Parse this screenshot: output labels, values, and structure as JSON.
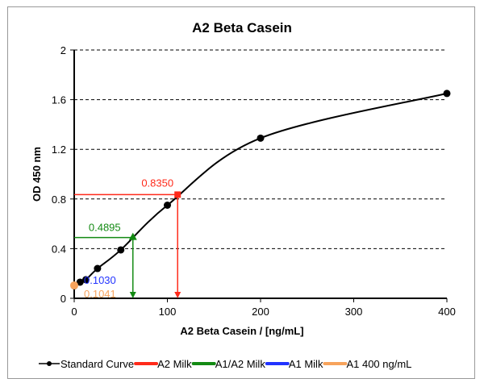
{
  "chart_data": {
    "type": "line",
    "title": "A2 Beta Casein",
    "xlabel": "A2 Beta Casein / [ng/mL]",
    "ylabel": "OD 450 nm",
    "xlim": [
      0,
      400
    ],
    "ylim": [
      0,
      2
    ],
    "xticks": [
      "0",
      "100",
      "200",
      "300",
      "400"
    ],
    "yticks": [
      "0",
      "0.4",
      "0.8",
      "1.2",
      "1.6",
      "2"
    ],
    "grid": "horizontal dashed",
    "legend": "bottom",
    "series": [
      {
        "name": "Standard Curve",
        "color": "#000000",
        "x": [
          0,
          6.25,
          12.5,
          25,
          50,
          100,
          200,
          400
        ],
        "y": [
          0.1,
          0.13,
          0.15,
          0.24,
          0.39,
          0.75,
          1.29,
          1.65
        ]
      },
      {
        "name": "A2 Milk",
        "color": "#ff2a1a",
        "x": [
          111
        ],
        "y": [
          0.835
        ],
        "label": "0.8350",
        "marker": "square"
      },
      {
        "name": "A1/A2 Milk",
        "color": "#138a13",
        "x": [
          63
        ],
        "y": [
          0.4895
        ],
        "label": "0.4895",
        "marker": "triangle"
      },
      {
        "name": "A1 Milk",
        "color": "#2233ff",
        "x": [
          0
        ],
        "y": [
          0.103
        ],
        "label": "0.1030",
        "marker": "diamond"
      },
      {
        "name": "A1 400 ng/mL",
        "color": "#f7a35c",
        "x": [
          0
        ],
        "y": [
          0.1041
        ],
        "label": "0.1041",
        "marker": "circle"
      }
    ]
  }
}
